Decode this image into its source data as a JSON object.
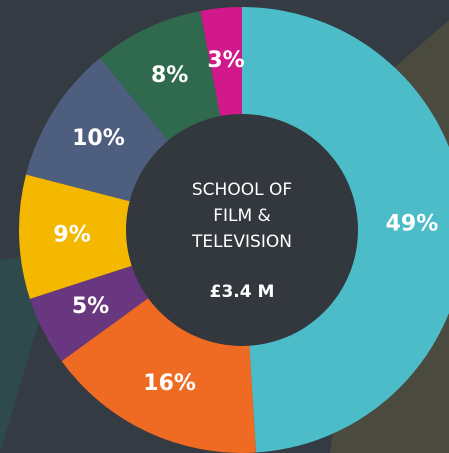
{
  "chart_data": {
    "type": "donut",
    "center_label": [
      "SCHOOL OF",
      "FILM &",
      "TELEVISION"
    ],
    "center_value": "£3.4 M",
    "values": [
      49,
      16,
      5,
      9,
      10,
      8,
      3
    ],
    "value_labels": [
      "49%",
      "16%",
      "5%",
      "9%",
      "10%",
      "8%",
      "3%"
    ],
    "colors": [
      "#4bbcc8",
      "#ef6a22",
      "#69377f",
      "#f4b800",
      "#4e5e7f",
      "#2f6a4e",
      "#d1198b"
    ]
  }
}
